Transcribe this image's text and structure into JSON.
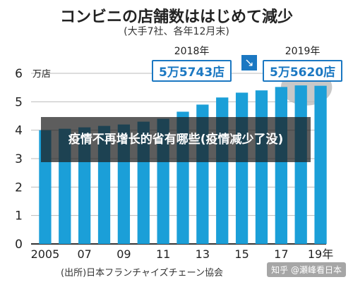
{
  "page": {
    "overlay_text": "疫情不再增长的省有哪些(疫情减少了没)",
    "source": "(出所)日本フランチャイズチェーン協会",
    "watermark": "知乎 @瀬峰看日本"
  },
  "chart_data": {
    "type": "bar",
    "title": "コンビニの店舗数ははじめて減少",
    "subtitle": "(大手7社、各年12月末)",
    "ylabel": "万店",
    "ylim": [
      0,
      6
    ],
    "yticks": [
      0,
      1,
      2,
      3,
      4,
      5,
      6
    ],
    "xtick_labels": [
      "2005",
      "07",
      "09",
      "11",
      "13",
      "15",
      "17",
      "19年"
    ],
    "bar_color": "#1b9fd8",
    "annotations": {
      "left_year": "2018年",
      "left_value": "5万5743店",
      "right_year": "2019年",
      "right_value": "5万5620店"
    },
    "categories": [
      "2005",
      "2006",
      "2007",
      "2008",
      "2009",
      "2010",
      "2011",
      "2012",
      "2013",
      "2014",
      "2015",
      "2016",
      "2017",
      "2018",
      "2019"
    ],
    "values": [
      4.0,
      4.05,
      4.1,
      4.15,
      4.2,
      4.3,
      4.4,
      4.65,
      4.9,
      5.15,
      5.32,
      5.4,
      5.52,
      5.5743,
      5.562
    ]
  }
}
